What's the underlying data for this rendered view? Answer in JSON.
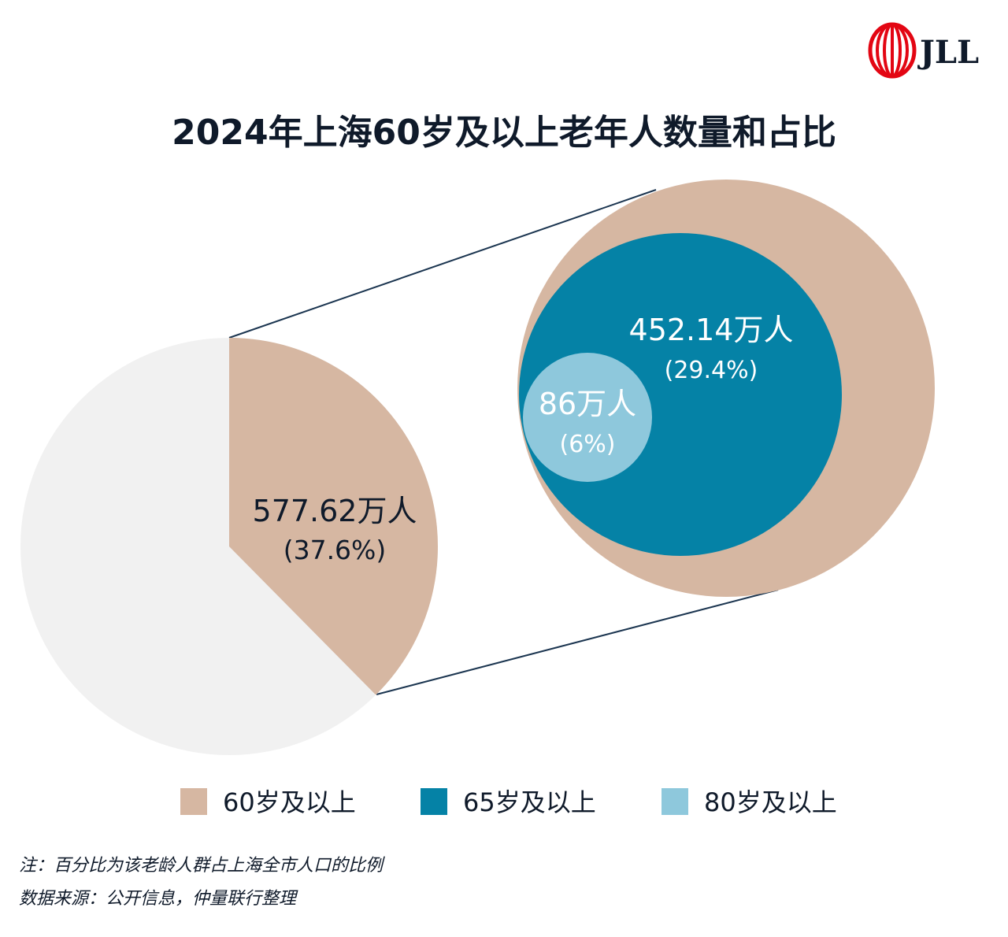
{
  "logo": {
    "text": "JLL",
    "color": "#e30613"
  },
  "chart_data": {
    "type": "pie",
    "title": "2024年上海60岁及以上老年人数量和占比",
    "pie": {
      "highlight_fraction": 0.376,
      "label_value": "577.62万人",
      "label_pct": "(37.6%)"
    },
    "series": [
      {
        "name": "60岁及以上",
        "value_wan": 577.62,
        "percent": 37.6,
        "value_label": "577.62万人",
        "pct_label": "(37.6%)",
        "color": "#d6b7a2"
      },
      {
        "name": "65岁及以上",
        "value_wan": 452.14,
        "percent": 29.4,
        "value_label": "452.14万人",
        "pct_label": "(29.4%)",
        "color": "#0582a6"
      },
      {
        "name": "80岁及以上",
        "value_wan": 86,
        "percent": 6,
        "value_label": "86万人",
        "pct_label": "(6%)",
        "color": "#8ec8dc"
      }
    ],
    "rest_color": "#f1f1f1",
    "connector_color": "#1b3550"
  },
  "notes": {
    "note1": "注：百分比为该老龄人群占上海全市人口的比例",
    "note2": "数据来源：公开信息，仲量联行整理"
  }
}
